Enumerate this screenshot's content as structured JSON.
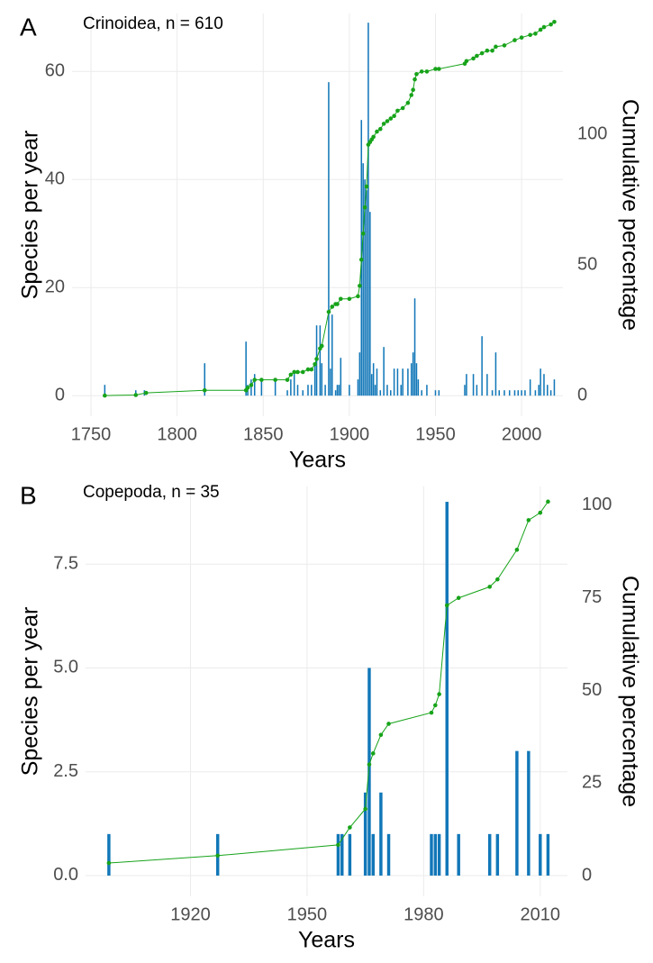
{
  "chart_data": [
    {
      "type": "combo",
      "panel_label": "A",
      "annotation": "Crinoidea, n =  610",
      "xlabel": "Years",
      "ylabel": "Species per year",
      "y2label": "Cumulative percentage",
      "xlim": [
        1739,
        2024
      ],
      "xticks": [
        1750,
        1800,
        1850,
        1900,
        1950,
        2000
      ],
      "ylim": [
        -3.8,
        70.7
      ],
      "yticks": [
        0,
        20,
        40,
        60
      ],
      "y2lim": [
        -7.9,
        146.2
      ],
      "y2ticks": [
        0,
        50,
        100
      ],
      "grid": true,
      "series": [
        {
          "color": "#1177b8",
          "x": [
            1758,
            1776,
            1781,
            1816,
            1840,
            1841,
            1843,
            1845,
            1849,
            1857,
            1864,
            1866,
            1868,
            1870,
            1873,
            1876,
            1878,
            1880,
            1881,
            1883,
            1884,
            1886,
            1888,
            1889,
            1890,
            1892,
            1893,
            1894,
            1895,
            1900,
            1905,
            1906,
            1907,
            1908,
            1909,
            1910,
            1911,
            1912,
            1913,
            1914,
            1915,
            1916,
            1918,
            1920,
            1922,
            1924,
            1926,
            1928,
            1930,
            1931,
            1934,
            1936,
            1937,
            1938,
            1939,
            1940,
            1942,
            1945,
            1950,
            1952,
            1967,
            1968,
            1972,
            1974,
            1977,
            1980,
            1983,
            1985,
            1987,
            1990,
            1993,
            1996,
            1998,
            2000,
            2002,
            2005,
            2008,
            2010,
            2011,
            2013,
            2015,
            2017,
            2019
          ],
          "values": [
            2,
            1,
            1,
            6,
            10,
            2,
            3,
            4,
            3,
            3,
            1,
            3,
            4,
            2,
            1,
            2,
            2,
            6,
            13,
            13,
            6,
            2,
            58,
            5,
            15,
            1,
            2,
            2,
            7,
            2,
            3,
            8,
            51,
            43,
            40,
            38,
            69,
            34,
            4,
            6,
            2,
            5,
            1,
            9,
            2,
            1,
            5,
            5,
            2,
            5,
            5,
            6,
            8,
            18,
            6,
            3,
            1,
            2,
            1,
            1,
            2,
            4,
            4,
            2,
            11,
            4,
            1,
            8,
            1,
            1,
            1,
            1,
            1,
            1,
            1,
            3,
            1,
            2,
            5,
            4,
            2,
            1,
            3
          ]
        },
        {
          "color": "#17a31a",
          "axis": "y2",
          "x": [
            1758,
            1776,
            1782,
            1816,
            1840,
            1841,
            1843,
            1845,
            1849,
            1857,
            1864,
            1866,
            1868,
            1870,
            1873,
            1876,
            1878,
            1880,
            1881,
            1883,
            1884,
            1888,
            1890,
            1892,
            1893,
            1895,
            1900,
            1905,
            1906,
            1907,
            1908,
            1909,
            1910,
            1911,
            1912,
            1913,
            1914,
            1916,
            1918,
            1920,
            1922,
            1924,
            1926,
            1928,
            1931,
            1934,
            1936,
            1937,
            1938,
            1939,
            1942,
            1945,
            1950,
            1952,
            1967,
            1968,
            1972,
            1974,
            1977,
            1980,
            1983,
            1985,
            1990,
            1996,
            2000,
            2005,
            2008,
            2011,
            2013,
            2017,
            2019
          ],
          "values": [
            0,
            0.2,
            1,
            2,
            2,
            3,
            4,
            6,
            6,
            6,
            6,
            8,
            9,
            9,
            9,
            10,
            10,
            12,
            14,
            18,
            19,
            32,
            34,
            35,
            35,
            37,
            37,
            38,
            42,
            52,
            62,
            72,
            80,
            96,
            97,
            98,
            99,
            101,
            102,
            104,
            105,
            106,
            107,
            109,
            110,
            112,
            115,
            117,
            121,
            123,
            124,
            124,
            125,
            125,
            127,
            128,
            129,
            130,
            131,
            132,
            132,
            133.5,
            134,
            136,
            137,
            138,
            138.5,
            140,
            141,
            142,
            143
          ]
        }
      ]
    },
    {
      "type": "combo",
      "panel_label": "B",
      "annotation": "Copepoda, n =  35",
      "xlabel": "Years",
      "ylabel": "Species per year",
      "y2label": "Cumulative percentage",
      "xlim": [
        1893,
        2017
      ],
      "xticks": [
        1920,
        1950,
        1980,
        2010
      ],
      "ylim": [
        -0.5,
        9.37
      ],
      "yticks": [
        {
          "value": 0,
          "label": "0.0"
        },
        2.5,
        {
          "value": 5,
          "label": "5.0"
        },
        7.5
      ],
      "y2lim": [
        -5.6,
        105.1
      ],
      "y2ticks": [
        0,
        25,
        50,
        75,
        100
      ],
      "grid": true,
      "series": [
        {
          "color": "#1177b8",
          "x": [
            1899,
            1927,
            1958,
            1959,
            1961,
            1965,
            1966,
            1967,
            1969,
            1971,
            1982,
            1983,
            1984,
            1986,
            1989,
            1997,
            1999,
            2004,
            2007,
            2010,
            2012
          ],
          "values": [
            1,
            1,
            1,
            1,
            1,
            2,
            5,
            1,
            2,
            1,
            1,
            1,
            1,
            9,
            1,
            1,
            1,
            3,
            3,
            1,
            1
          ]
        },
        {
          "color": "#17a31a",
          "axis": "y2",
          "x": [
            1899,
            1927,
            1958,
            1961,
            1965,
            1966,
            1967,
            1969,
            1971,
            1982,
            1983,
            1984,
            1986,
            1989,
            1997,
            1999,
            2004,
            2007,
            2010,
            2012
          ],
          "values": [
            3.4,
            5.4,
            8.3,
            13,
            18,
            30,
            33,
            38,
            41,
            44,
            46,
            49,
            73,
            75,
            78,
            80,
            88,
            96,
            98,
            101
          ]
        }
      ]
    }
  ]
}
